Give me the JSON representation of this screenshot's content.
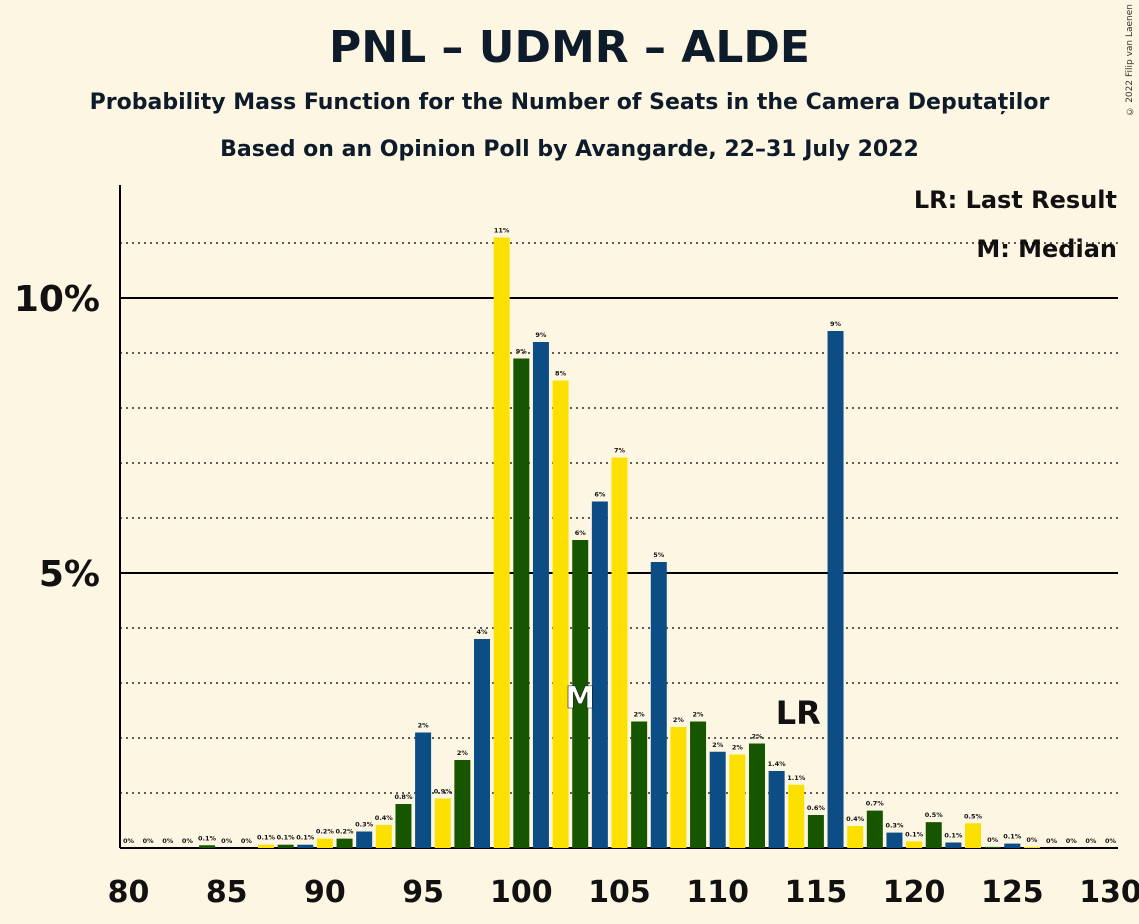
{
  "title": "PNL – UDMR – ALDE",
  "subtitle1": "Probability Mass Function for the Number of Seats in the Camera Deputaților",
  "subtitle2": "Based on an Opinion Poll by Avangarde, 22–31 July 2022",
  "copyright": "© 2022 Filip van Laenen",
  "legend": {
    "lr": "LR: Last Result",
    "m": "M: Median"
  },
  "colors": {
    "blue": "#0c4d86",
    "green": "#175600",
    "yellow": "#fce100",
    "background": "#fdf6e3"
  },
  "chart_data": {
    "type": "bar",
    "x_range": [
      80,
      130
    ],
    "y_range": [
      0,
      12
    ],
    "x_ticks": [
      "80",
      "85",
      "90",
      "95",
      "100",
      "105",
      "110",
      "115",
      "120",
      "125",
      "130"
    ],
    "y_ticks": [
      {
        "value": 5,
        "label": "5%"
      },
      {
        "value": 10,
        "label": "10%"
      }
    ],
    "median": {
      "seat": 103,
      "label": "M"
    },
    "last_result": {
      "seat": 114,
      "label": "LR"
    },
    "bars": [
      {
        "seat": 80,
        "value": 0,
        "label": "0%",
        "color": "blue"
      },
      {
        "seat": 81,
        "value": 0,
        "label": "0%",
        "color": "green"
      },
      {
        "seat": 82,
        "value": 0,
        "label": "0%",
        "color": "yellow"
      },
      {
        "seat": 83,
        "value": 0,
        "label": "0%",
        "color": "blue"
      },
      {
        "seat": 84,
        "value": 0.05,
        "label": "0.1%",
        "color": "green"
      },
      {
        "seat": 85,
        "value": 0,
        "label": "0%",
        "color": "yellow"
      },
      {
        "seat": 86,
        "value": 0,
        "label": "0%",
        "color": "blue"
      },
      {
        "seat": 87,
        "value": 0.06,
        "label": "0.1%",
        "color": "yellow"
      },
      {
        "seat": 88,
        "value": 0.06,
        "label": "0.1%",
        "color": "green"
      },
      {
        "seat": 89,
        "value": 0.06,
        "label": "0.1%",
        "color": "blue"
      },
      {
        "seat": 90,
        "value": 0.17,
        "label": "0.2%",
        "color": "yellow"
      },
      {
        "seat": 91,
        "value": 0.17,
        "label": "0.2%",
        "color": "green"
      },
      {
        "seat": 92,
        "value": 0.3,
        "label": "0.3%",
        "color": "blue"
      },
      {
        "seat": 93,
        "value": 0.42,
        "label": "0.4%",
        "color": "yellow"
      },
      {
        "seat": 94,
        "value": 0.8,
        "label": "0.8%",
        "color": "green"
      },
      {
        "seat": 95,
        "value": 2.1,
        "label": "2%",
        "color": "blue"
      },
      {
        "seat": 96,
        "value": 0.9,
        "label": "0.9%",
        "color": "yellow"
      },
      {
        "seat": 97,
        "value": 1.6,
        "label": "2%",
        "color": "green"
      },
      {
        "seat": 98,
        "value": 3.8,
        "label": "4%",
        "color": "blue"
      },
      {
        "seat": 99,
        "value": 11.1,
        "label": "11%",
        "color": "yellow"
      },
      {
        "seat": 100,
        "value": 8.9,
        "label": "9%",
        "color": "green"
      },
      {
        "seat": 101,
        "value": 9.2,
        "label": "9%",
        "color": "blue"
      },
      {
        "seat": 102,
        "value": 8.5,
        "label": "8%",
        "color": "yellow"
      },
      {
        "seat": 103,
        "value": 5.6,
        "label": "6%",
        "color": "green"
      },
      {
        "seat": 104,
        "value": 6.3,
        "label": "6%",
        "color": "blue"
      },
      {
        "seat": 105,
        "value": 7.1,
        "label": "7%",
        "color": "yellow"
      },
      {
        "seat": 106,
        "value": 2.3,
        "label": "2%",
        "color": "green"
      },
      {
        "seat": 107,
        "value": 5.2,
        "label": "5%",
        "color": "blue"
      },
      {
        "seat": 108,
        "value": 2.2,
        "label": "2%",
        "color": "yellow"
      },
      {
        "seat": 109,
        "value": 2.3,
        "label": "2%",
        "color": "green"
      },
      {
        "seat": 110,
        "value": 1.75,
        "label": "2%",
        "color": "blue"
      },
      {
        "seat": 111,
        "value": 1.7,
        "label": "2%",
        "color": "yellow"
      },
      {
        "seat": 112,
        "value": 1.9,
        "label": "2%",
        "color": "green"
      },
      {
        "seat": 113,
        "value": 1.4,
        "label": "1.4%",
        "color": "blue"
      },
      {
        "seat": 114,
        "value": 1.15,
        "label": "1.1%",
        "color": "yellow"
      },
      {
        "seat": 115,
        "value": 0.6,
        "label": "0.6%",
        "color": "green"
      },
      {
        "seat": 116,
        "value": 9.4,
        "label": "9%",
        "color": "blue"
      },
      {
        "seat": 117,
        "value": 0.4,
        "label": "0.4%",
        "color": "yellow"
      },
      {
        "seat": 118,
        "value": 0.68,
        "label": "0.7%",
        "color": "green"
      },
      {
        "seat": 119,
        "value": 0.28,
        "label": "0.3%",
        "color": "blue"
      },
      {
        "seat": 120,
        "value": 0.12,
        "label": "0.1%",
        "color": "yellow"
      },
      {
        "seat": 121,
        "value": 0.47,
        "label": "0.5%",
        "color": "green"
      },
      {
        "seat": 122,
        "value": 0.1,
        "label": "0.1%",
        "color": "blue"
      },
      {
        "seat": 123,
        "value": 0.45,
        "label": "0.5%",
        "color": "yellow"
      },
      {
        "seat": 124,
        "value": 0.02,
        "label": "0%",
        "color": "green"
      },
      {
        "seat": 125,
        "value": 0.08,
        "label": "0.1%",
        "color": "blue"
      },
      {
        "seat": 126,
        "value": 0.02,
        "label": "0%",
        "color": "yellow"
      },
      {
        "seat": 127,
        "value": 0,
        "label": "0%",
        "color": "green"
      },
      {
        "seat": 128,
        "value": 0,
        "label": "0%",
        "color": "blue"
      },
      {
        "seat": 129,
        "value": 0,
        "label": "0%",
        "color": "yellow"
      },
      {
        "seat": 130,
        "value": 0,
        "label": "0%",
        "color": "green"
      }
    ]
  }
}
